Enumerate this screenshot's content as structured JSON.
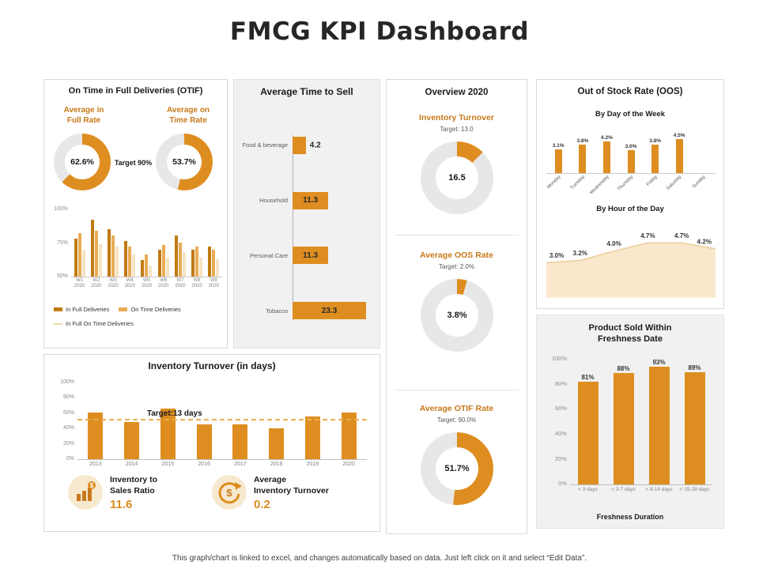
{
  "page": {
    "title": "FMCG KPI Dashboard",
    "footer": "This graph/chart is linked to excel,  and changes automatically based on data. Just left click on it and select “Edit Data”."
  },
  "colors": {
    "orange": "#DE8E20",
    "orange_dark": "#C17A12",
    "orange_light": "#E9AC55",
    "orange_pale": "#F6E3C3",
    "heading_orange": "#C8791B",
    "donut_gray": "#E7E7E7",
    "text_dark": "#1A1A1A",
    "text_gray": "#595959"
  },
  "panels": {
    "otif": {
      "title": "On Time in Full Deliveries (OTIF)",
      "left_heading": "Average in\nFull Rate",
      "right_heading": "Average on\nTime Rate",
      "target": "Target 90%"
    },
    "overview": {
      "title": "Overview 2020"
    },
    "oos": {
      "title": "Out of Stock Rate (OOS)"
    },
    "inventory": {
      "kpi1_label": "Inventory to\nSales Ratio",
      "kpi1_value": "11.6",
      "kpi2_label": "Average\nInventory Turnover",
      "kpi2_value": "0.2"
    },
    "freshness": {
      "title": "Product Sold Within\nFreshness Date",
      "xlabel": "Freshness Duration"
    }
  },
  "chart_data": [
    {
      "id": "otif_in_full",
      "type": "pie",
      "title": "Average in Full Rate",
      "label": "62.6%",
      "value": 62.6,
      "arc_pct": 62.6
    },
    {
      "id": "otif_on_time",
      "type": "pie",
      "title": "Average on Time Rate",
      "label": "53.7%",
      "value": 53.7,
      "arc_pct": 53.7
    },
    {
      "id": "otif_weekly",
      "type": "bar",
      "title": "OTIF by week",
      "categories": [
        "W1 2020",
        "W2 2020",
        "W3 2020",
        "W4 2020",
        "W5 2020",
        "W6 2020",
        "W7 2020",
        "W8 2020",
        "W9 2020"
      ],
      "series": [
        {
          "name": "In Full Deliveries",
          "values": [
            78,
            92,
            85,
            76,
            62,
            70,
            80,
            70,
            72
          ]
        },
        {
          "name": "On Time Deliveries",
          "values": [
            82,
            84,
            80,
            72,
            66,
            73,
            75,
            72,
            70
          ]
        },
        {
          "name": "In Full On Time Deliveries",
          "values": [
            70,
            74,
            72,
            66,
            58,
            64,
            68,
            64,
            63
          ]
        }
      ],
      "ylim": [
        50,
        100
      ],
      "yticks": [
        "100%",
        "75%",
        "50%"
      ]
    },
    {
      "id": "time_to_sell",
      "type": "bar",
      "orientation": "horizontal",
      "title": "Average Time to Sell",
      "categories": [
        "Food & beverage",
        "Household",
        "Personal Care",
        "Tobacco"
      ],
      "values": [
        4.2,
        11.3,
        11.3,
        23.3
      ],
      "labels": [
        "4.2",
        "11.3",
        "11.3",
        "23.3"
      ],
      "xlim": [
        0,
        25
      ]
    },
    {
      "id": "ov_turnover",
      "type": "pie",
      "title": "Inventory Turnover",
      "target": "Target: 13.0",
      "label": "16.5",
      "value": 16.5,
      "arc_pct": 12.5
    },
    {
      "id": "ov_oos",
      "type": "pie",
      "title": "Average OOS Rate",
      "target": "Target: 2.0%",
      "label": "3.8%",
      "value": 3.8,
      "arc_pct": 4.5
    },
    {
      "id": "ov_otif",
      "type": "pie",
      "title": "Average OTIF Rate",
      "target": "Target: 90.0%",
      "label": "51.7%",
      "value": 51.7,
      "arc_pct": 51.7
    },
    {
      "id": "oos_by_day",
      "type": "bar",
      "title": "By Day of the Week",
      "categories": [
        "Monday",
        "Tuesday",
        "Wednesday",
        "Thursday",
        "Friday",
        "Saturday",
        "Sunday"
      ],
      "values": [
        3.1,
        3.8,
        4.2,
        3.0,
        3.8,
        4.5,
        0
      ],
      "labels": [
        "3.1%",
        "3.8%",
        "4.2%",
        "3.0%",
        "3.8%",
        "4.5%",
        ""
      ],
      "ylim": [
        0,
        5
      ]
    },
    {
      "id": "oos_by_hour",
      "type": "area",
      "title": "By Hour of the Day",
      "values": [
        3.0,
        3.2,
        4.0,
        4.7,
        4.7,
        4.2
      ],
      "labels": [
        "3.0%",
        "3.2%",
        "4.0%",
        "4.7%",
        "4.7%",
        "4.2%"
      ],
      "ylim": [
        0,
        5
      ]
    },
    {
      "id": "inventory_years",
      "type": "bar",
      "title": "Inventory Turnover (in days)",
      "categories": [
        "2013",
        "2014",
        "2015",
        "2016",
        "2017",
        "2018",
        "2019",
        "2020"
      ],
      "values": [
        60,
        48,
        65,
        45,
        45,
        40,
        55,
        60
      ],
      "ylim": [
        0,
        100
      ],
      "yticks": [
        "100%",
        "80%",
        "60%",
        "40%",
        "20%",
        "0%"
      ],
      "target_label": "Target:13 days",
      "target_line_pct": 50
    },
    {
      "id": "freshness",
      "type": "bar",
      "title": "Product Sold Within Freshness Date",
      "categories": [
        "< 3 days",
        "< 3-7 days",
        "< 8-14 days",
        "< 15-28 days"
      ],
      "values": [
        81,
        88,
        93,
        89
      ],
      "labels": [
        "81%",
        "88%",
        "93%",
        "89%"
      ],
      "ylim": [
        0,
        100
      ],
      "yticks": [
        "100%",
        "80%",
        "60%",
        "40%",
        "20%",
        "0%"
      ],
      "xlabel": "Freshness Duration"
    }
  ]
}
